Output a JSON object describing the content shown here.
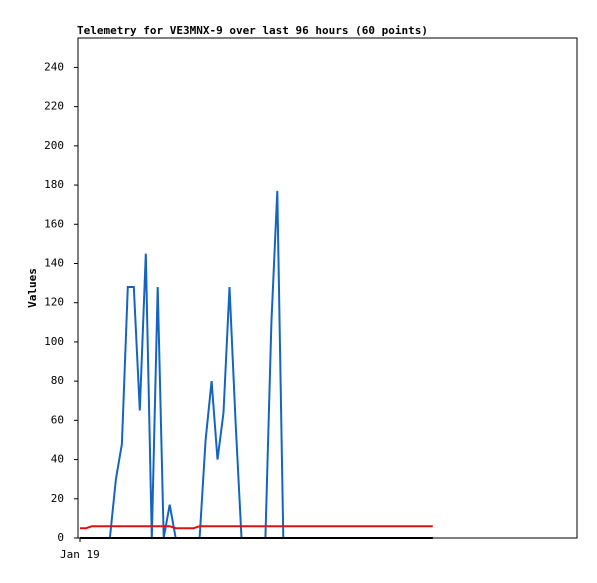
{
  "chart_data": {
    "type": "line",
    "title": "Telemetry for VE3MNX-9 over last 96 hours (60 points)",
    "ylabel": "Values",
    "categories": [
      "Jan 19",
      null,
      null,
      null,
      null,
      null,
      null,
      null,
      null,
      null,
      null,
      null,
      null,
      null,
      null,
      null,
      null,
      null,
      null,
      null,
      null,
      null,
      null,
      null,
      null,
      null,
      null,
      null,
      null,
      null,
      null,
      null,
      null,
      null,
      null,
      null,
      null,
      null,
      null,
      null,
      null,
      null,
      null,
      null,
      null,
      null,
      null,
      null,
      null,
      null,
      null,
      null,
      null,
      null,
      null,
      null,
      null,
      null,
      null,
      null
    ],
    "ylim": [
      0,
      255
    ],
    "yticks": [
      0,
      20,
      40,
      60,
      80,
      100,
      120,
      140,
      160,
      180,
      200,
      220,
      240
    ],
    "series": [
      {
        "color": "#1565c0",
        "values": [
          0,
          0,
          0,
          0,
          0,
          0,
          30,
          48,
          128,
          128,
          65,
          145,
          0,
          128,
          0,
          17,
          0,
          0,
          0,
          0,
          0,
          50,
          80,
          40,
          64,
          128,
          60,
          0,
          0,
          0,
          0,
          0,
          110,
          177,
          0,
          0,
          0,
          0,
          0,
          0,
          0,
          0,
          0,
          0,
          0,
          0,
          0,
          0,
          0,
          0,
          0,
          0,
          0,
          0,
          0,
          0,
          0,
          0,
          0,
          0
        ]
      },
      {
        "color": "#e01010",
        "values": [
          5,
          5,
          6,
          6,
          6,
          6,
          6,
          6,
          6,
          6,
          6,
          6,
          6,
          6,
          6,
          6,
          5,
          5,
          5,
          5,
          6,
          6,
          6,
          6,
          6,
          6,
          6,
          6,
          6,
          6,
          6,
          6,
          6,
          6,
          6,
          6,
          6,
          6,
          6,
          6,
          6,
          6,
          6,
          6,
          6,
          6,
          6,
          6,
          6,
          6,
          6,
          6,
          6,
          6,
          6,
          6,
          6,
          6,
          6,
          6
        ]
      },
      {
        "color": "#000000",
        "values": [
          0,
          0,
          0,
          0,
          0,
          0,
          0,
          0,
          0,
          0,
          0,
          0,
          0,
          0,
          0,
          0,
          0,
          0,
          0,
          0,
          0,
          0,
          0,
          0,
          0,
          0,
          0,
          0,
          0,
          0,
          0,
          0,
          0,
          0,
          0,
          0,
          0,
          0,
          0,
          0,
          0,
          0,
          0,
          0,
          0,
          0,
          0,
          0,
          0,
          0,
          0,
          0,
          0,
          0,
          0,
          0,
          0,
          0,
          0,
          0
        ]
      }
    ]
  }
}
